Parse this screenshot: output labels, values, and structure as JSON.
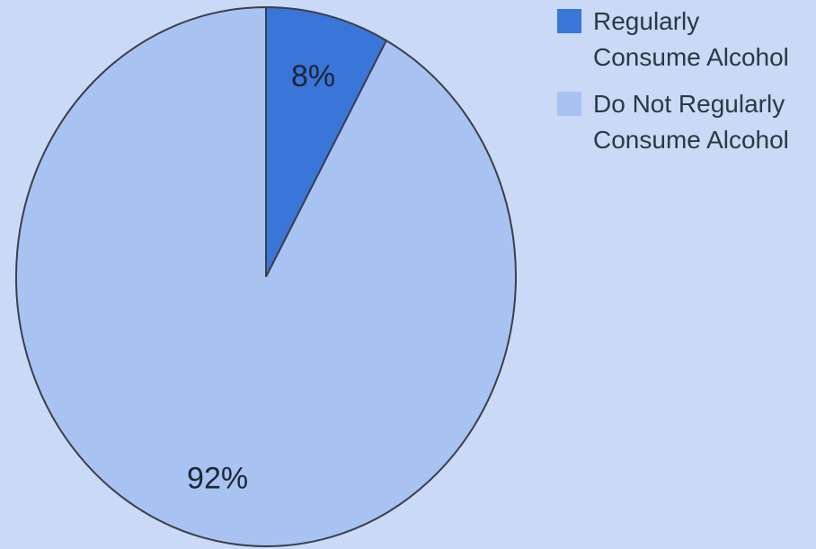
{
  "chart_data": {
    "type": "pie",
    "title": "",
    "start_angle_deg": 0,
    "direction": "clockwise",
    "slices": [
      {
        "label": "Regularly Consume Alcohol",
        "value": 8,
        "display": "8%",
        "color": "#3a75d9"
      },
      {
        "label": "Do Not Regularly Consume Alcohol",
        "value": 92,
        "display": "92%",
        "color": "#a8c3f2"
      }
    ],
    "legend_position": "top-right"
  },
  "colors": {
    "background": "#cad9f5",
    "outline": "#3a3f4a"
  }
}
